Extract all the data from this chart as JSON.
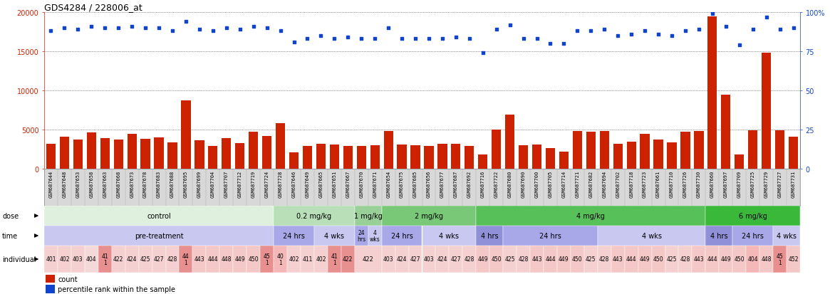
{
  "title": "GDS4284 / 228006_at",
  "samples": [
    "GSM687644",
    "GSM687648",
    "GSM687653",
    "GSM687658",
    "GSM687663",
    "GSM687668",
    "GSM687673",
    "GSM687678",
    "GSM687683",
    "GSM687688",
    "GSM687695",
    "GSM687699",
    "GSM687704",
    "GSM687707",
    "GSM687712",
    "GSM687719",
    "GSM687724",
    "GSM687728",
    "GSM687646",
    "GSM687649",
    "GSM687665",
    "GSM687651",
    "GSM687667",
    "GSM687670",
    "GSM687671",
    "GSM687654",
    "GSM687675",
    "GSM687685",
    "GSM687656",
    "GSM687677",
    "GSM687687",
    "GSM687692",
    "GSM687716",
    "GSM687722",
    "GSM687680",
    "GSM687690",
    "GSM687700",
    "GSM687705",
    "GSM687714",
    "GSM687721",
    "GSM687682",
    "GSM687694",
    "GSM687702",
    "GSM687718",
    "GSM687723",
    "GSM687661",
    "GSM687710",
    "GSM687726",
    "GSM687730",
    "GSM687660",
    "GSM687697",
    "GSM687709",
    "GSM687725",
    "GSM687729",
    "GSM687727",
    "GSM687731"
  ],
  "counts": [
    3200,
    4100,
    3700,
    4600,
    3900,
    3700,
    4500,
    3800,
    4000,
    3400,
    8700,
    3600,
    2900,
    3900,
    3300,
    4700,
    4200,
    5800,
    2100,
    2900,
    3200,
    3100,
    2900,
    2900,
    3000,
    4800,
    3100,
    3000,
    2900,
    3200,
    3200,
    2900,
    1800,
    5000,
    6900,
    3000,
    3100,
    2600,
    2200,
    4800,
    4700,
    4800,
    3200,
    3500,
    4500,
    3700,
    3400,
    4700,
    4800,
    19500,
    9500,
    1850,
    4900,
    14800,
    4900,
    4100
  ],
  "percentiles": [
    88,
    90,
    89,
    91,
    90,
    90,
    91,
    90,
    90,
    88,
    94,
    89,
    88,
    90,
    89,
    91,
    90,
    88,
    81,
    83,
    85,
    83,
    84,
    83,
    83,
    90,
    83,
    83,
    83,
    83,
    84,
    83,
    74,
    89,
    92,
    83,
    83,
    80,
    80,
    88,
    88,
    89,
    85,
    86,
    88,
    86,
    85,
    88,
    89,
    99,
    91,
    79,
    89,
    97,
    89,
    90
  ],
  "dose_groups": [
    {
      "label": "control",
      "start": 0,
      "end": 17,
      "color": "#dff0df"
    },
    {
      "label": "0.2 mg/kg",
      "start": 17,
      "end": 23,
      "color": "#b8dfb8"
    },
    {
      "label": "1 mg/kg",
      "start": 23,
      "end": 25,
      "color": "#98d098"
    },
    {
      "label": "2 mg/kg",
      "start": 25,
      "end": 32,
      "color": "#78c878"
    },
    {
      "label": "4 mg/kg",
      "start": 32,
      "end": 49,
      "color": "#58c058"
    },
    {
      "label": "6 mg/kg",
      "start": 49,
      "end": 56,
      "color": "#3ab83a"
    }
  ],
  "time_groups": [
    {
      "label": "pre-treatment",
      "start": 0,
      "end": 17,
      "color": "#c8c8f0"
    },
    {
      "label": "24 hrs",
      "start": 17,
      "end": 20,
      "color": "#a8a8e8"
    },
    {
      "label": "4 wks",
      "start": 20,
      "end": 23,
      "color": "#c8c8f0"
    },
    {
      "label": "24\nhrs",
      "start": 23,
      "end": 24,
      "color": "#a8a8e8"
    },
    {
      "label": "4\nwks",
      "start": 24,
      "end": 25,
      "color": "#c8c8f0"
    },
    {
      "label": "24 hrs",
      "start": 25,
      "end": 28,
      "color": "#a8a8e8"
    },
    {
      "label": "4 wks",
      "start": 28,
      "end": 32,
      "color": "#c8c8f0"
    },
    {
      "label": "4 hrs",
      "start": 32,
      "end": 34,
      "color": "#9090d8"
    },
    {
      "label": "24 hrs",
      "start": 34,
      "end": 41,
      "color": "#a8a8e8"
    },
    {
      "label": "4 wks",
      "start": 41,
      "end": 49,
      "color": "#c8c8f0"
    },
    {
      "label": "4 hrs",
      "start": 49,
      "end": 51,
      "color": "#9090d8"
    },
    {
      "label": "24 hrs",
      "start": 51,
      "end": 54,
      "color": "#a8a8e8"
    },
    {
      "label": "4 wks",
      "start": 54,
      "end": 56,
      "color": "#c8c8f0"
    }
  ],
  "individual_groups": [
    {
      "label": "401",
      "start": 0,
      "end": 1,
      "color": "#f5d0d0"
    },
    {
      "label": "402",
      "start": 1,
      "end": 2,
      "color": "#f5d0d0"
    },
    {
      "label": "403",
      "start": 2,
      "end": 3,
      "color": "#f5d0d0"
    },
    {
      "label": "404",
      "start": 3,
      "end": 4,
      "color": "#f5d8d8"
    },
    {
      "label": "41\n1",
      "start": 4,
      "end": 5,
      "color": "#e89090"
    },
    {
      "label": "422",
      "start": 5,
      "end": 6,
      "color": "#f5d0d0"
    },
    {
      "label": "424",
      "start": 6,
      "end": 7,
      "color": "#f5d0d0"
    },
    {
      "label": "425",
      "start": 7,
      "end": 8,
      "color": "#f5d0d0"
    },
    {
      "label": "427",
      "start": 8,
      "end": 9,
      "color": "#f5d0d0"
    },
    {
      "label": "428",
      "start": 9,
      "end": 10,
      "color": "#f5d0d0"
    },
    {
      "label": "44\n1",
      "start": 10,
      "end": 11,
      "color": "#e89090"
    },
    {
      "label": "443",
      "start": 11,
      "end": 12,
      "color": "#f5c8c8"
    },
    {
      "label": "444",
      "start": 12,
      "end": 13,
      "color": "#f5c8c8"
    },
    {
      "label": "448",
      "start": 13,
      "end": 14,
      "color": "#f5c8c8"
    },
    {
      "label": "449",
      "start": 14,
      "end": 15,
      "color": "#f5c8c8"
    },
    {
      "label": "450",
      "start": 15,
      "end": 16,
      "color": "#f5c8c8"
    },
    {
      "label": "45\n1",
      "start": 16,
      "end": 17,
      "color": "#e89090"
    },
    {
      "label": "40\n1",
      "start": 17,
      "end": 18,
      "color": "#f5b8b8"
    },
    {
      "label": "402",
      "start": 18,
      "end": 19,
      "color": "#f5d0d0"
    },
    {
      "label": "411",
      "start": 19,
      "end": 20,
      "color": "#f5d0d0"
    },
    {
      "label": "402",
      "start": 20,
      "end": 21,
      "color": "#f5d0d0"
    },
    {
      "label": "41\n1",
      "start": 21,
      "end": 22,
      "color": "#e89090"
    },
    {
      "label": "422",
      "start": 22,
      "end": 23,
      "color": "#e89090"
    },
    {
      "label": "422",
      "start": 23,
      "end": 25,
      "color": "#f5d0d0"
    },
    {
      "label": "403",
      "start": 25,
      "end": 26,
      "color": "#f5d0d0"
    },
    {
      "label": "424",
      "start": 26,
      "end": 27,
      "color": "#f5d0d0"
    },
    {
      "label": "427",
      "start": 27,
      "end": 28,
      "color": "#f5d0d0"
    },
    {
      "label": "403",
      "start": 28,
      "end": 29,
      "color": "#f5d0d0"
    },
    {
      "label": "424",
      "start": 29,
      "end": 30,
      "color": "#f5d0d0"
    },
    {
      "label": "427",
      "start": 30,
      "end": 31,
      "color": "#f5d0d0"
    },
    {
      "label": "428",
      "start": 31,
      "end": 32,
      "color": "#f5d0d0"
    },
    {
      "label": "449",
      "start": 32,
      "end": 33,
      "color": "#f5c8c8"
    },
    {
      "label": "450",
      "start": 33,
      "end": 34,
      "color": "#f5c8c8"
    },
    {
      "label": "425",
      "start": 34,
      "end": 35,
      "color": "#f5d0d0"
    },
    {
      "label": "428",
      "start": 35,
      "end": 36,
      "color": "#f5d0d0"
    },
    {
      "label": "443",
      "start": 36,
      "end": 37,
      "color": "#f5c8c8"
    },
    {
      "label": "444",
      "start": 37,
      "end": 38,
      "color": "#f5c8c8"
    },
    {
      "label": "449",
      "start": 38,
      "end": 39,
      "color": "#f5c8c8"
    },
    {
      "label": "450",
      "start": 39,
      "end": 40,
      "color": "#f5c8c8"
    },
    {
      "label": "425",
      "start": 40,
      "end": 41,
      "color": "#f5d0d0"
    },
    {
      "label": "428",
      "start": 41,
      "end": 42,
      "color": "#f5d0d0"
    },
    {
      "label": "443",
      "start": 42,
      "end": 43,
      "color": "#f5c8c8"
    },
    {
      "label": "444",
      "start": 43,
      "end": 44,
      "color": "#f5c8c8"
    },
    {
      "label": "449",
      "start": 44,
      "end": 45,
      "color": "#f5c8c8"
    },
    {
      "label": "450",
      "start": 45,
      "end": 46,
      "color": "#f5c8c8"
    },
    {
      "label": "425",
      "start": 46,
      "end": 47,
      "color": "#f5d0d0"
    },
    {
      "label": "428",
      "start": 47,
      "end": 48,
      "color": "#f5d0d0"
    },
    {
      "label": "443",
      "start": 48,
      "end": 49,
      "color": "#f5c8c8"
    },
    {
      "label": "444",
      "start": 49,
      "end": 50,
      "color": "#f5c8c8"
    },
    {
      "label": "449",
      "start": 50,
      "end": 51,
      "color": "#f5c8c8"
    },
    {
      "label": "450",
      "start": 51,
      "end": 52,
      "color": "#f5c8c8"
    },
    {
      "label": "404",
      "start": 52,
      "end": 53,
      "color": "#f5b8b8"
    },
    {
      "label": "448",
      "start": 53,
      "end": 54,
      "color": "#f5c8c8"
    },
    {
      "label": "45\n1",
      "start": 54,
      "end": 55,
      "color": "#e89090"
    },
    {
      "label": "452",
      "start": 55,
      "end": 56,
      "color": "#f5c8c8"
    }
  ],
  "ylim_left": [
    0,
    20000
  ],
  "ylim_right": [
    0,
    100
  ],
  "yticks_left": [
    0,
    5000,
    10000,
    15000,
    20000
  ],
  "yticks_right": [
    0,
    25,
    50,
    75,
    100
  ],
  "bar_color": "#cc2200",
  "dot_color": "#1144cc",
  "background_color": "#ffffff",
  "plot_bg": "#ffffff"
}
